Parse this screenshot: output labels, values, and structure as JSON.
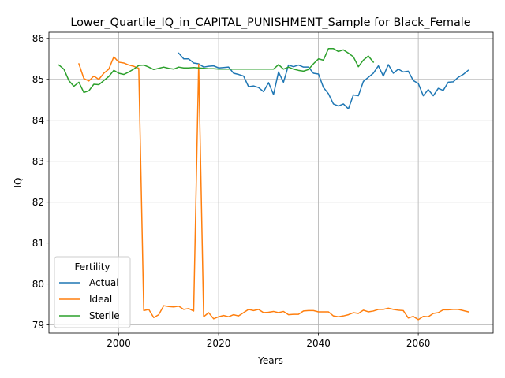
{
  "chart_data": {
    "type": "line",
    "title": "Lower_Quartile_IQ_in_CAPITAL_PUNISHMENT_Sample for Black_Female",
    "xlabel": "Years",
    "ylabel": "IQ",
    "xlim": [
      1986,
      2075
    ],
    "ylim": [
      78.8,
      86.15
    ],
    "xticks": [
      2000,
      2020,
      2040,
      2060
    ],
    "yticks": [
      79,
      80,
      81,
      82,
      83,
      84,
      85,
      86
    ],
    "grid": true,
    "legend": {
      "title": "Fertility",
      "placement": "lower-left"
    },
    "series": [
      {
        "name": "Actual",
        "color": "#1f77b4",
        "points": [
          [
            2012,
            85.64
          ],
          [
            2013,
            85.5
          ],
          [
            2014,
            85.5
          ],
          [
            2015,
            85.4
          ],
          [
            2016,
            85.38
          ],
          [
            2017,
            85.3
          ],
          [
            2018,
            85.32
          ],
          [
            2019,
            85.33
          ],
          [
            2020,
            85.28
          ],
          [
            2021,
            85.29
          ],
          [
            2022,
            85.3
          ],
          [
            2023,
            85.15
          ],
          [
            2024,
            85.12
          ],
          [
            2025,
            85.08
          ],
          [
            2026,
            84.82
          ],
          [
            2027,
            84.84
          ],
          [
            2028,
            84.8
          ],
          [
            2029,
            84.7
          ],
          [
            2030,
            84.92
          ],
          [
            2031,
            84.63
          ],
          [
            2032,
            85.18
          ],
          [
            2033,
            84.93
          ],
          [
            2034,
            85.35
          ],
          [
            2035,
            85.31
          ],
          [
            2036,
            85.35
          ],
          [
            2037,
            85.3
          ],
          [
            2038,
            85.3
          ],
          [
            2039,
            85.15
          ],
          [
            2040,
            85.13
          ],
          [
            2041,
            84.8
          ],
          [
            2042,
            84.65
          ],
          [
            2043,
            84.4
          ],
          [
            2044,
            84.35
          ],
          [
            2045,
            84.4
          ],
          [
            2046,
            84.28
          ],
          [
            2047,
            84.62
          ],
          [
            2048,
            84.6
          ],
          [
            2049,
            84.95
          ],
          [
            2050,
            85.05
          ],
          [
            2051,
            85.15
          ],
          [
            2052,
            85.33
          ],
          [
            2053,
            85.08
          ],
          [
            2054,
            85.36
          ],
          [
            2055,
            85.15
          ],
          [
            2056,
            85.25
          ],
          [
            2057,
            85.18
          ],
          [
            2058,
            85.2
          ],
          [
            2059,
            84.97
          ],
          [
            2060,
            84.9
          ],
          [
            2061,
            84.6
          ],
          [
            2062,
            84.75
          ],
          [
            2063,
            84.6
          ],
          [
            2064,
            84.78
          ],
          [
            2065,
            84.73
          ],
          [
            2066,
            84.93
          ],
          [
            2067,
            84.94
          ],
          [
            2068,
            85.05
          ],
          [
            2069,
            85.12
          ],
          [
            2070,
            85.22
          ]
        ]
      },
      {
        "name": "Ideal",
        "color": "#ff7f0e",
        "points": [
          [
            1992,
            85.38
          ],
          [
            1993,
            85.02
          ],
          [
            1994,
            84.96
          ],
          [
            1995,
            85.08
          ],
          [
            1996,
            85.0
          ],
          [
            1997,
            85.15
          ],
          [
            1998,
            85.25
          ],
          [
            1999,
            85.55
          ],
          [
            2000,
            85.42
          ],
          [
            2001,
            85.4
          ],
          [
            2002,
            85.35
          ],
          [
            2003,
            85.32
          ],
          [
            2004,
            85.27
          ],
          [
            2005,
            79.35
          ],
          [
            2006,
            79.38
          ],
          [
            2007,
            79.18
          ],
          [
            2008,
            79.25
          ],
          [
            2009,
            79.47
          ],
          [
            2010,
            79.45
          ],
          [
            2011,
            79.44
          ],
          [
            2012,
            79.46
          ],
          [
            2013,
            79.38
          ],
          [
            2014,
            79.4
          ],
          [
            2015,
            79.34
          ],
          [
            2016,
            85.37
          ],
          [
            2017,
            79.2
          ],
          [
            2018,
            79.3
          ],
          [
            2019,
            79.15
          ],
          [
            2020,
            79.2
          ],
          [
            2021,
            79.23
          ],
          [
            2022,
            79.2
          ],
          [
            2023,
            79.25
          ],
          [
            2024,
            79.22
          ],
          [
            2025,
            79.3
          ],
          [
            2026,
            79.38
          ],
          [
            2027,
            79.35
          ],
          [
            2028,
            79.38
          ],
          [
            2029,
            79.3
          ],
          [
            2030,
            79.31
          ],
          [
            2031,
            79.33
          ],
          [
            2032,
            79.3
          ],
          [
            2033,
            79.33
          ],
          [
            2034,
            79.25
          ],
          [
            2035,
            79.26
          ],
          [
            2036,
            79.26
          ],
          [
            2037,
            79.34
          ],
          [
            2038,
            79.35
          ],
          [
            2039,
            79.35
          ],
          [
            2040,
            79.32
          ],
          [
            2041,
            79.32
          ],
          [
            2042,
            79.32
          ],
          [
            2043,
            79.22
          ],
          [
            2044,
            79.2
          ],
          [
            2045,
            79.22
          ],
          [
            2046,
            79.25
          ],
          [
            2047,
            79.3
          ],
          [
            2048,
            79.28
          ],
          [
            2049,
            79.36
          ],
          [
            2050,
            79.32
          ],
          [
            2051,
            79.34
          ],
          [
            2052,
            79.38
          ],
          [
            2053,
            79.38
          ],
          [
            2054,
            79.41
          ],
          [
            2055,
            79.38
          ],
          [
            2056,
            79.36
          ],
          [
            2057,
            79.35
          ],
          [
            2058,
            79.17
          ],
          [
            2059,
            79.21
          ],
          [
            2060,
            79.13
          ],
          [
            2061,
            79.21
          ],
          [
            2062,
            79.2
          ],
          [
            2063,
            79.28
          ],
          [
            2064,
            79.3
          ],
          [
            2065,
            79.37
          ],
          [
            2066,
            79.37
          ],
          [
            2067,
            79.38
          ],
          [
            2068,
            79.38
          ],
          [
            2069,
            79.35
          ],
          [
            2070,
            79.32
          ]
        ]
      },
      {
        "name": "Sterile",
        "color": "#2ca02c",
        "points": [
          [
            1988,
            85.35
          ],
          [
            1989,
            85.25
          ],
          [
            1990,
            84.97
          ],
          [
            1991,
            84.83
          ],
          [
            1992,
            84.93
          ],
          [
            1993,
            84.68
          ],
          [
            1994,
            84.72
          ],
          [
            1995,
            84.88
          ],
          [
            1996,
            84.87
          ],
          [
            1997,
            84.97
          ],
          [
            1998,
            85.07
          ],
          [
            1999,
            85.22
          ],
          [
            2000,
            85.15
          ],
          [
            2001,
            85.12
          ],
          [
            2002,
            85.18
          ],
          [
            2003,
            85.25
          ],
          [
            2004,
            85.34
          ],
          [
            2005,
            85.35
          ],
          [
            2006,
            85.3
          ],
          [
            2007,
            85.24
          ],
          [
            2008,
            85.27
          ],
          [
            2009,
            85.3
          ],
          [
            2010,
            85.27
          ],
          [
            2011,
            85.25
          ],
          [
            2012,
            85.3
          ],
          [
            2013,
            85.28
          ],
          [
            2014,
            85.28
          ],
          [
            2015,
            85.29
          ],
          [
            2016,
            85.28
          ],
          [
            2017,
            85.27
          ],
          [
            2018,
            85.26
          ],
          [
            2019,
            85.26
          ],
          [
            2020,
            85.25
          ],
          [
            2021,
            85.25
          ],
          [
            2022,
            85.25
          ],
          [
            2023,
            85.25
          ],
          [
            2024,
            85.25
          ],
          [
            2025,
            85.25
          ],
          [
            2026,
            85.25
          ],
          [
            2027,
            85.25
          ],
          [
            2028,
            85.25
          ],
          [
            2029,
            85.25
          ],
          [
            2030,
            85.25
          ],
          [
            2031,
            85.25
          ],
          [
            2032,
            85.36
          ],
          [
            2033,
            85.25
          ],
          [
            2034,
            85.3
          ],
          [
            2035,
            85.25
          ],
          [
            2036,
            85.22
          ],
          [
            2037,
            85.2
          ],
          [
            2038,
            85.24
          ],
          [
            2039,
            85.38
          ],
          [
            2040,
            85.5
          ],
          [
            2041,
            85.47
          ],
          [
            2042,
            85.75
          ],
          [
            2043,
            85.75
          ],
          [
            2044,
            85.68
          ],
          [
            2045,
            85.72
          ],
          [
            2046,
            85.64
          ],
          [
            2047,
            85.55
          ],
          [
            2048,
            85.31
          ],
          [
            2049,
            85.47
          ],
          [
            2050,
            85.57
          ],
          [
            2051,
            85.42
          ]
        ]
      }
    ]
  }
}
